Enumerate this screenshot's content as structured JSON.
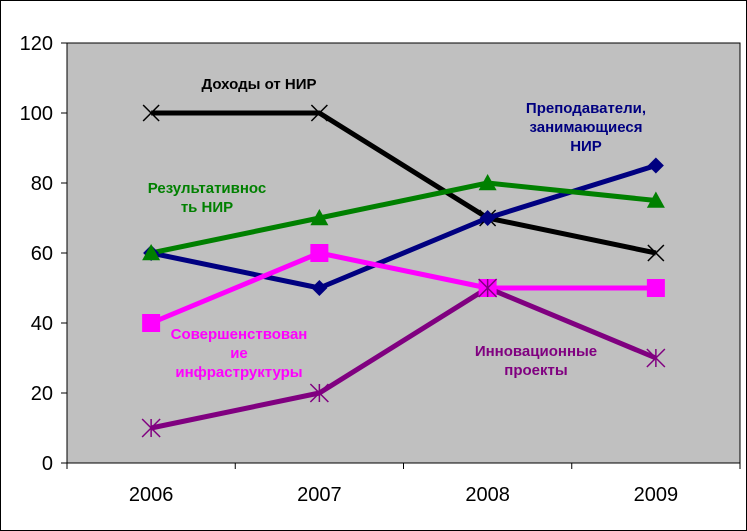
{
  "chart_data": {
    "type": "line",
    "categories": [
      "2006",
      "2007",
      "2008",
      "2009"
    ],
    "ylim": [
      0,
      120
    ],
    "y_ticks": [
      0,
      20,
      40,
      60,
      80,
      100,
      120
    ],
    "grid": false,
    "plot_background": "#c0c0c0",
    "series": [
      {
        "name": "Доходы от НИР",
        "label_lines": [
          "Доходы от НИР"
        ],
        "values": [
          100,
          100,
          70,
          60
        ],
        "color": "#000000",
        "marker": "x-cross"
      },
      {
        "name": "Преподаватели, занимающиеся НИР",
        "label_lines": [
          "Преподаватели,",
          "занимающиеся",
          "НИР"
        ],
        "values": [
          60,
          50,
          70,
          85
        ],
        "color": "#000080",
        "marker": "diamond"
      },
      {
        "name": "Результативность НИР",
        "label_lines": [
          "Результативнос",
          "ть НИР"
        ],
        "values": [
          60,
          70,
          80,
          75
        ],
        "color": "#008000",
        "marker": "triangle"
      },
      {
        "name": "Совершенствование инфраструктуры",
        "label_lines": [
          "Совершенствован",
          "ие",
          "инфраструктуры"
        ],
        "values": [
          40,
          60,
          50,
          50
        ],
        "color": "#ff00ff",
        "marker": "square"
      },
      {
        "name": "Инновационные проекты",
        "label_lines": [
          "Инновационные",
          "проекты"
        ],
        "values": [
          10,
          20,
          50,
          30
        ],
        "color": "#800080",
        "marker": "star"
      }
    ]
  }
}
